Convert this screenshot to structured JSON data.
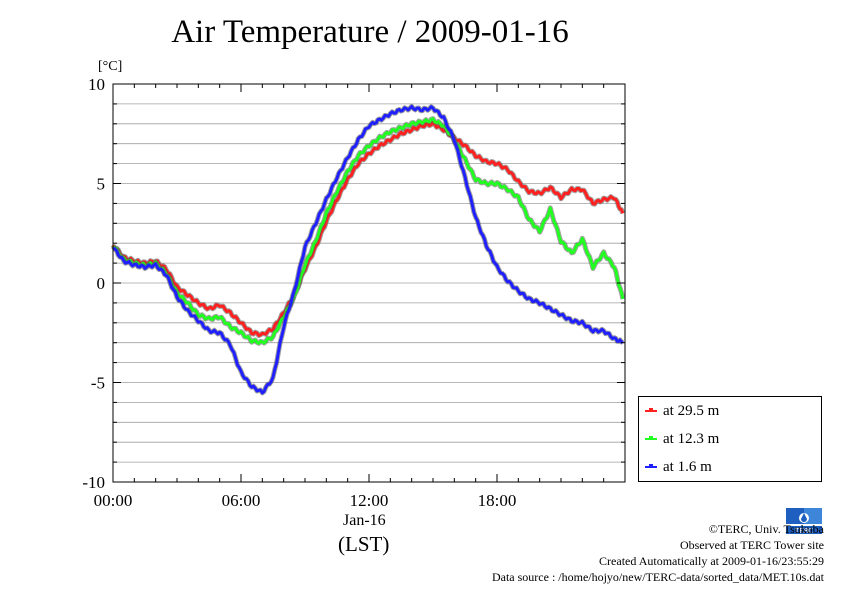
{
  "title": "Air Temperature / 2009-01-16",
  "unit_label": "[°C]",
  "x_date_label": "Jan-16",
  "x_axis_note": "(LST)",
  "legend": [
    {
      "label": "at 29.5 m",
      "color": "#ff2020"
    },
    {
      "label": "at 12.3 m",
      "color": "#20ff20"
    },
    {
      "label": "at 1.6 m",
      "color": "#2020ff"
    }
  ],
  "credits": [
    "©TERC, Univ. Tsukuba",
    "Observed at TERC Tower site",
    "Created Automatically at 2009-01-16/23:55:29",
    "Data source : /home/hojyo/new/TERC-data/sorted_data/MET.10s.dat"
  ],
  "logo_text": "TERC",
  "chart_data": {
    "type": "line",
    "title": "Air Temperature / 2009-01-16",
    "ylabel": "[°C]",
    "xlabel": "(LST)",
    "xlim": [
      0,
      24
    ],
    "ylim": [
      -10,
      10
    ],
    "x_ticks": [
      {
        "value": 0,
        "label": "00:00"
      },
      {
        "value": 6,
        "label": "06:00"
      },
      {
        "value": 12,
        "label": "12:00"
      },
      {
        "value": 18,
        "label": "18:00"
      }
    ],
    "y_ticks": [
      {
        "value": 10,
        "label": "10"
      },
      {
        "value": 5,
        "label": "5"
      },
      {
        "value": 0,
        "label": "0"
      },
      {
        "value": -5,
        "label": "-5"
      },
      {
        "value": -10,
        "label": "-10"
      }
    ],
    "grid": true,
    "legend_position": "lower-right-outside",
    "x": [
      0,
      0.5,
      1,
      1.5,
      2,
      2.5,
      3,
      3.5,
      4,
      4.5,
      5,
      5.5,
      6,
      6.5,
      7,
      7.5,
      8,
      8.5,
      9,
      9.5,
      10,
      10.5,
      11,
      11.5,
      12,
      12.5,
      13,
      13.5,
      14,
      14.5,
      15,
      15.5,
      16,
      16.5,
      17,
      17.5,
      18,
      18.5,
      19,
      19.5,
      20,
      20.5,
      21,
      21.5,
      22,
      22.5,
      23,
      23.5,
      23.9
    ],
    "series": [
      {
        "name": "at 29.5 m",
        "color": "#ff2020",
        "values": [
          1.9,
          1.3,
          1.1,
          1.0,
          1.1,
          0.7,
          -0.2,
          -0.6,
          -1.0,
          -1.3,
          -1.1,
          -1.5,
          -2.0,
          -2.5,
          -2.6,
          -2.3,
          -1.5,
          -0.6,
          0.7,
          1.8,
          3.1,
          4.2,
          5.2,
          6.0,
          6.5,
          6.9,
          7.2,
          7.5,
          7.7,
          7.9,
          8.0,
          7.7,
          7.3,
          6.9,
          6.4,
          6.1,
          6.0,
          5.7,
          5.1,
          4.6,
          4.5,
          4.8,
          4.3,
          4.7,
          4.7,
          4.0,
          4.2,
          4.3,
          3.5
        ]
      },
      {
        "name": "at 12.3 m",
        "color": "#20ff20",
        "values": [
          1.9,
          1.2,
          1.0,
          0.9,
          1.0,
          0.5,
          -0.5,
          -1.0,
          -1.6,
          -1.8,
          -1.7,
          -2.2,
          -2.5,
          -2.9,
          -3.0,
          -2.7,
          -1.7,
          -0.7,
          0.9,
          2.1,
          3.5,
          4.6,
          5.6,
          6.4,
          6.9,
          7.3,
          7.6,
          7.8,
          8.0,
          8.1,
          8.2,
          7.9,
          7.2,
          6.2,
          5.2,
          5.0,
          5.0,
          4.7,
          4.3,
          3.2,
          2.6,
          3.7,
          2.1,
          1.5,
          2.2,
          0.8,
          1.5,
          0.8,
          -0.8
        ]
      },
      {
        "name": "at 1.6 m",
        "color": "#2020ff",
        "values": [
          1.8,
          1.1,
          0.9,
          0.8,
          0.9,
          0.4,
          -0.7,
          -1.4,
          -1.9,
          -2.4,
          -2.5,
          -3.1,
          -4.5,
          -5.2,
          -5.5,
          -4.8,
          -2.2,
          -0.4,
          1.8,
          3.0,
          4.2,
          5.3,
          6.3,
          7.2,
          7.9,
          8.2,
          8.5,
          8.7,
          8.8,
          8.7,
          8.8,
          8.3,
          7.2,
          5.3,
          3.3,
          1.9,
          0.8,
          0.1,
          -0.4,
          -0.8,
          -1.0,
          -1.3,
          -1.6,
          -1.9,
          -2.0,
          -2.4,
          -2.4,
          -2.8,
          -3.0
        ]
      }
    ]
  }
}
